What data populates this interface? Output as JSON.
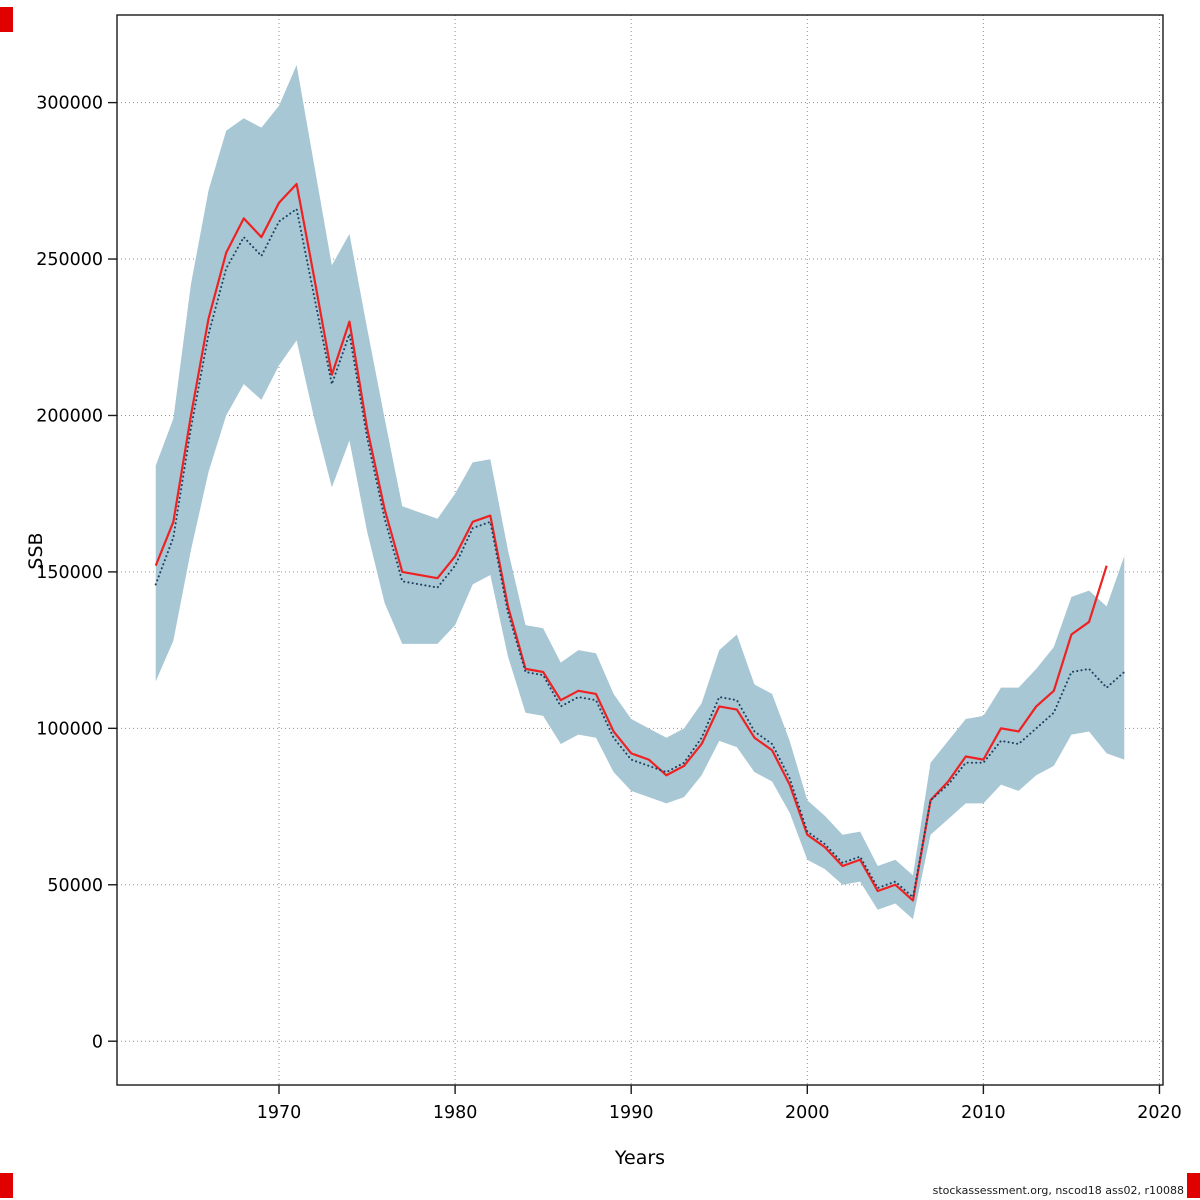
{
  "footer": {
    "source": "stockassessment.org, nscod18 ass02, r10088"
  },
  "chart_data": {
    "type": "line",
    "title": "",
    "xlabel": "Years",
    "ylabel": "SSB",
    "xlim": [
      1960.8,
      2020.2
    ],
    "ylim": [
      -14000,
      328000
    ],
    "xticks": [
      1970,
      1980,
      1990,
      2000,
      2010,
      2020
    ],
    "yticks": [
      0,
      50000,
      100000,
      150000,
      200000,
      250000,
      300000
    ],
    "grid": true,
    "legend_position": "none",
    "grid_color": "#909090",
    "band_color": "#a8c7d4",
    "band": {
      "name": "confidence-interval",
      "years": [
        1963,
        1964,
        1965,
        1966,
        1967,
        1968,
        1969,
        1970,
        1971,
        1972,
        1973,
        1974,
        1975,
        1976,
        1977,
        1978,
        1979,
        1980,
        1981,
        1982,
        1983,
        1984,
        1985,
        1986,
        1987,
        1988,
        1989,
        1990,
        1991,
        1992,
        1993,
        1994,
        1995,
        1996,
        1997,
        1998,
        1999,
        2000,
        2001,
        2002,
        2003,
        2004,
        2005,
        2006,
        2007,
        2008,
        2009,
        2010,
        2011,
        2012,
        2013,
        2014,
        2015,
        2016,
        2017,
        2018
      ],
      "lower": [
        115000,
        128000,
        157000,
        182000,
        200000,
        210000,
        205000,
        216000,
        224000,
        199000,
        177000,
        192000,
        163000,
        140000,
        127000,
        127000,
        127000,
        133000,
        146000,
        149000,
        123000,
        105000,
        104000,
        95000,
        98000,
        97000,
        86000,
        80000,
        78000,
        76000,
        78000,
        85000,
        96000,
        94000,
        86000,
        83000,
        73000,
        58000,
        55000,
        50000,
        51000,
        42000,
        44000,
        39000,
        66000,
        71000,
        76000,
        76000,
        82000,
        80000,
        85000,
        88000,
        98000,
        99000,
        92000,
        90000
      ],
      "upper": [
        184000,
        199000,
        242000,
        272000,
        291000,
        295000,
        292000,
        299000,
        312000,
        280000,
        248000,
        258000,
        228000,
        199000,
        171000,
        169000,
        167000,
        175000,
        185000,
        186000,
        157000,
        133000,
        132000,
        121000,
        125000,
        124000,
        111000,
        103000,
        100000,
        97000,
        100000,
        108000,
        125000,
        130000,
        114000,
        111000,
        96000,
        77000,
        72000,
        66000,
        67000,
        56000,
        58000,
        53000,
        89000,
        96000,
        103000,
        104000,
        113000,
        113000,
        119000,
        126000,
        142000,
        144000,
        139000,
        155000
      ]
    },
    "series": [
      {
        "name": "ssb-estimate-red",
        "color": "#ee2222",
        "style": "solid",
        "width": 2.2,
        "years": [
          1963,
          1964,
          1965,
          1966,
          1967,
          1968,
          1969,
          1970,
          1971,
          1972,
          1973,
          1974,
          1975,
          1976,
          1977,
          1978,
          1979,
          1980,
          1981,
          1982,
          1983,
          1984,
          1985,
          1986,
          1987,
          1988,
          1989,
          1990,
          1991,
          1992,
          1993,
          1994,
          1995,
          1996,
          1997,
          1998,
          1999,
          2000,
          2001,
          2002,
          2003,
          2004,
          2005,
          2006,
          2007,
          2008,
          2009,
          2010,
          2011,
          2012,
          2013,
          2014,
          2015,
          2016,
          2017
        ],
        "values": [
          152000,
          166000,
          200000,
          231000,
          252000,
          263000,
          257000,
          268000,
          274000,
          244000,
          213000,
          230000,
          196000,
          170000,
          150000,
          149000,
          148000,
          155000,
          166000,
          168000,
          139000,
          119000,
          118000,
          109000,
          112000,
          111000,
          99000,
          92000,
          90000,
          85000,
          88000,
          95000,
          107000,
          106000,
          97000,
          93000,
          82000,
          66000,
          62000,
          56000,
          58000,
          48000,
          50000,
          45000,
          77000,
          83000,
          91000,
          90000,
          100000,
          99000,
          107000,
          112000,
          130000,
          134000,
          152000
        ]
      },
      {
        "name": "ssb-reference-dotted",
        "color": "#1b4060",
        "style": "dotted",
        "width": 2,
        "years": [
          1963,
          1964,
          1965,
          1966,
          1967,
          1968,
          1969,
          1970,
          1971,
          1972,
          1973,
          1974,
          1975,
          1976,
          1977,
          1978,
          1979,
          1980,
          1981,
          1982,
          1983,
          1984,
          1985,
          1986,
          1987,
          1988,
          1989,
          1990,
          1991,
          1992,
          1993,
          1994,
          1995,
          1996,
          1997,
          1998,
          1999,
          2000,
          2001,
          2002,
          2003,
          2004,
          2005,
          2006,
          2007,
          2008,
          2009,
          2010,
          2011,
          2012,
          2013,
          2014,
          2015,
          2016,
          2017,
          2018
        ],
        "values": [
          146000,
          161000,
          196000,
          226000,
          247000,
          257000,
          251000,
          262000,
          266000,
          238000,
          210000,
          226000,
          193000,
          167000,
          147000,
          146000,
          145000,
          152000,
          164000,
          166000,
          137000,
          118000,
          117000,
          107000,
          110000,
          109000,
          97000,
          90000,
          88000,
          86000,
          89000,
          97000,
          110000,
          109000,
          99000,
          95000,
          84000,
          67000,
          63000,
          57000,
          59000,
          49000,
          51000,
          46000,
          77000,
          82000,
          89000,
          89000,
          96000,
          95000,
          100000,
          105000,
          118000,
          119000,
          113000,
          118000
        ]
      }
    ]
  }
}
